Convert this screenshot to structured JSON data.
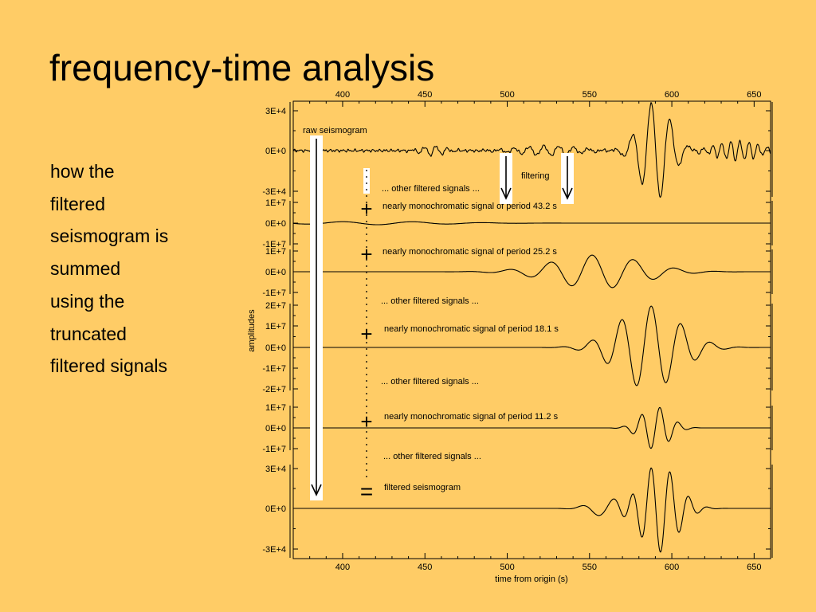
{
  "slide": {
    "title": "frequency-time analysis",
    "body_lines": [
      "how the",
      "filtered",
      "seismogram is",
      "summed",
      "using the",
      "truncated",
      "filtered signals"
    ]
  },
  "chart_data": {
    "type": "line",
    "xlabel": "time from origin (s)",
    "ylabel": "amplitudes",
    "xlim": [
      370,
      660
    ],
    "x_ticks": [
      "400",
      "450",
      "500",
      "550",
      "600",
      "650"
    ],
    "panels": [
      {
        "id": "raw",
        "ticks": [
          "3E+4",
          "0E+0",
          "-3E+4"
        ],
        "label": "raw seismogram"
      },
      {
        "id": "p43",
        "ticks": [
          "1E+7",
          "0E+0",
          "-1E+7"
        ],
        "label": "nearly monochromatic signal of period 43.2 s"
      },
      {
        "id": "p25",
        "ticks": [
          "1E+7",
          "0E+0",
          "-1E+7"
        ],
        "label": "nearly monochromatic signal of period 25.2 s"
      },
      {
        "id": "p18",
        "ticks": [
          "2E+7",
          "1E+7",
          "0E+0",
          "-1E+7",
          "-2E+7"
        ],
        "label": "nearly monochromatic signal of period 18.1 s"
      },
      {
        "id": "p11",
        "ticks": [
          "1E+7",
          "0E+0",
          "-1E+7"
        ],
        "label": "nearly monochromatic signal of period 11.2 s"
      },
      {
        "id": "sum",
        "ticks": [
          "3E+4",
          "0E+0",
          "-3E+4"
        ],
        "label": "filtered seismogram"
      }
    ],
    "annotations": {
      "filtering": "filtering",
      "other": "... other filtered signals ...",
      "plus": "+",
      "equals": "="
    }
  }
}
